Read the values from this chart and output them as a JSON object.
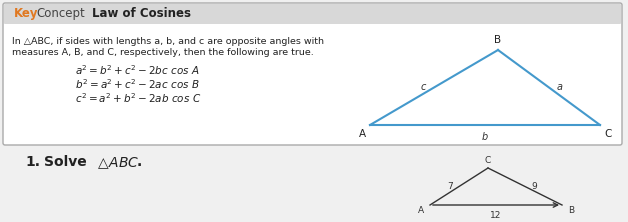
{
  "bg_color": "#f0f0f0",
  "box_border": "#aaaaaa",
  "box_bg": "#ffffff",
  "header_bg": "#d8d8d8",
  "key_color": "#e07820",
  "concept_color": "#555555",
  "title": "Law of Cosines",
  "body_text1": "In △ABC, if sides with lengths a, b, and c are opposite angles with",
  "body_text2": "measures A, B, and C, respectively, then the following are true.",
  "triangle_color": "#4499cc",
  "tri_label_A": "A",
  "tri_label_B": "B",
  "tri_label_C": "C",
  "tri_label_a": "a",
  "tri_label_b": "b",
  "tri_label_c": "c",
  "problem_number": "1.",
  "small_tri_A": "A",
  "small_tri_B": "B",
  "small_tri_C": "C",
  "small_tri_side_AC": "7",
  "small_tri_side_BC": "9",
  "small_tri_side_AB": "12"
}
